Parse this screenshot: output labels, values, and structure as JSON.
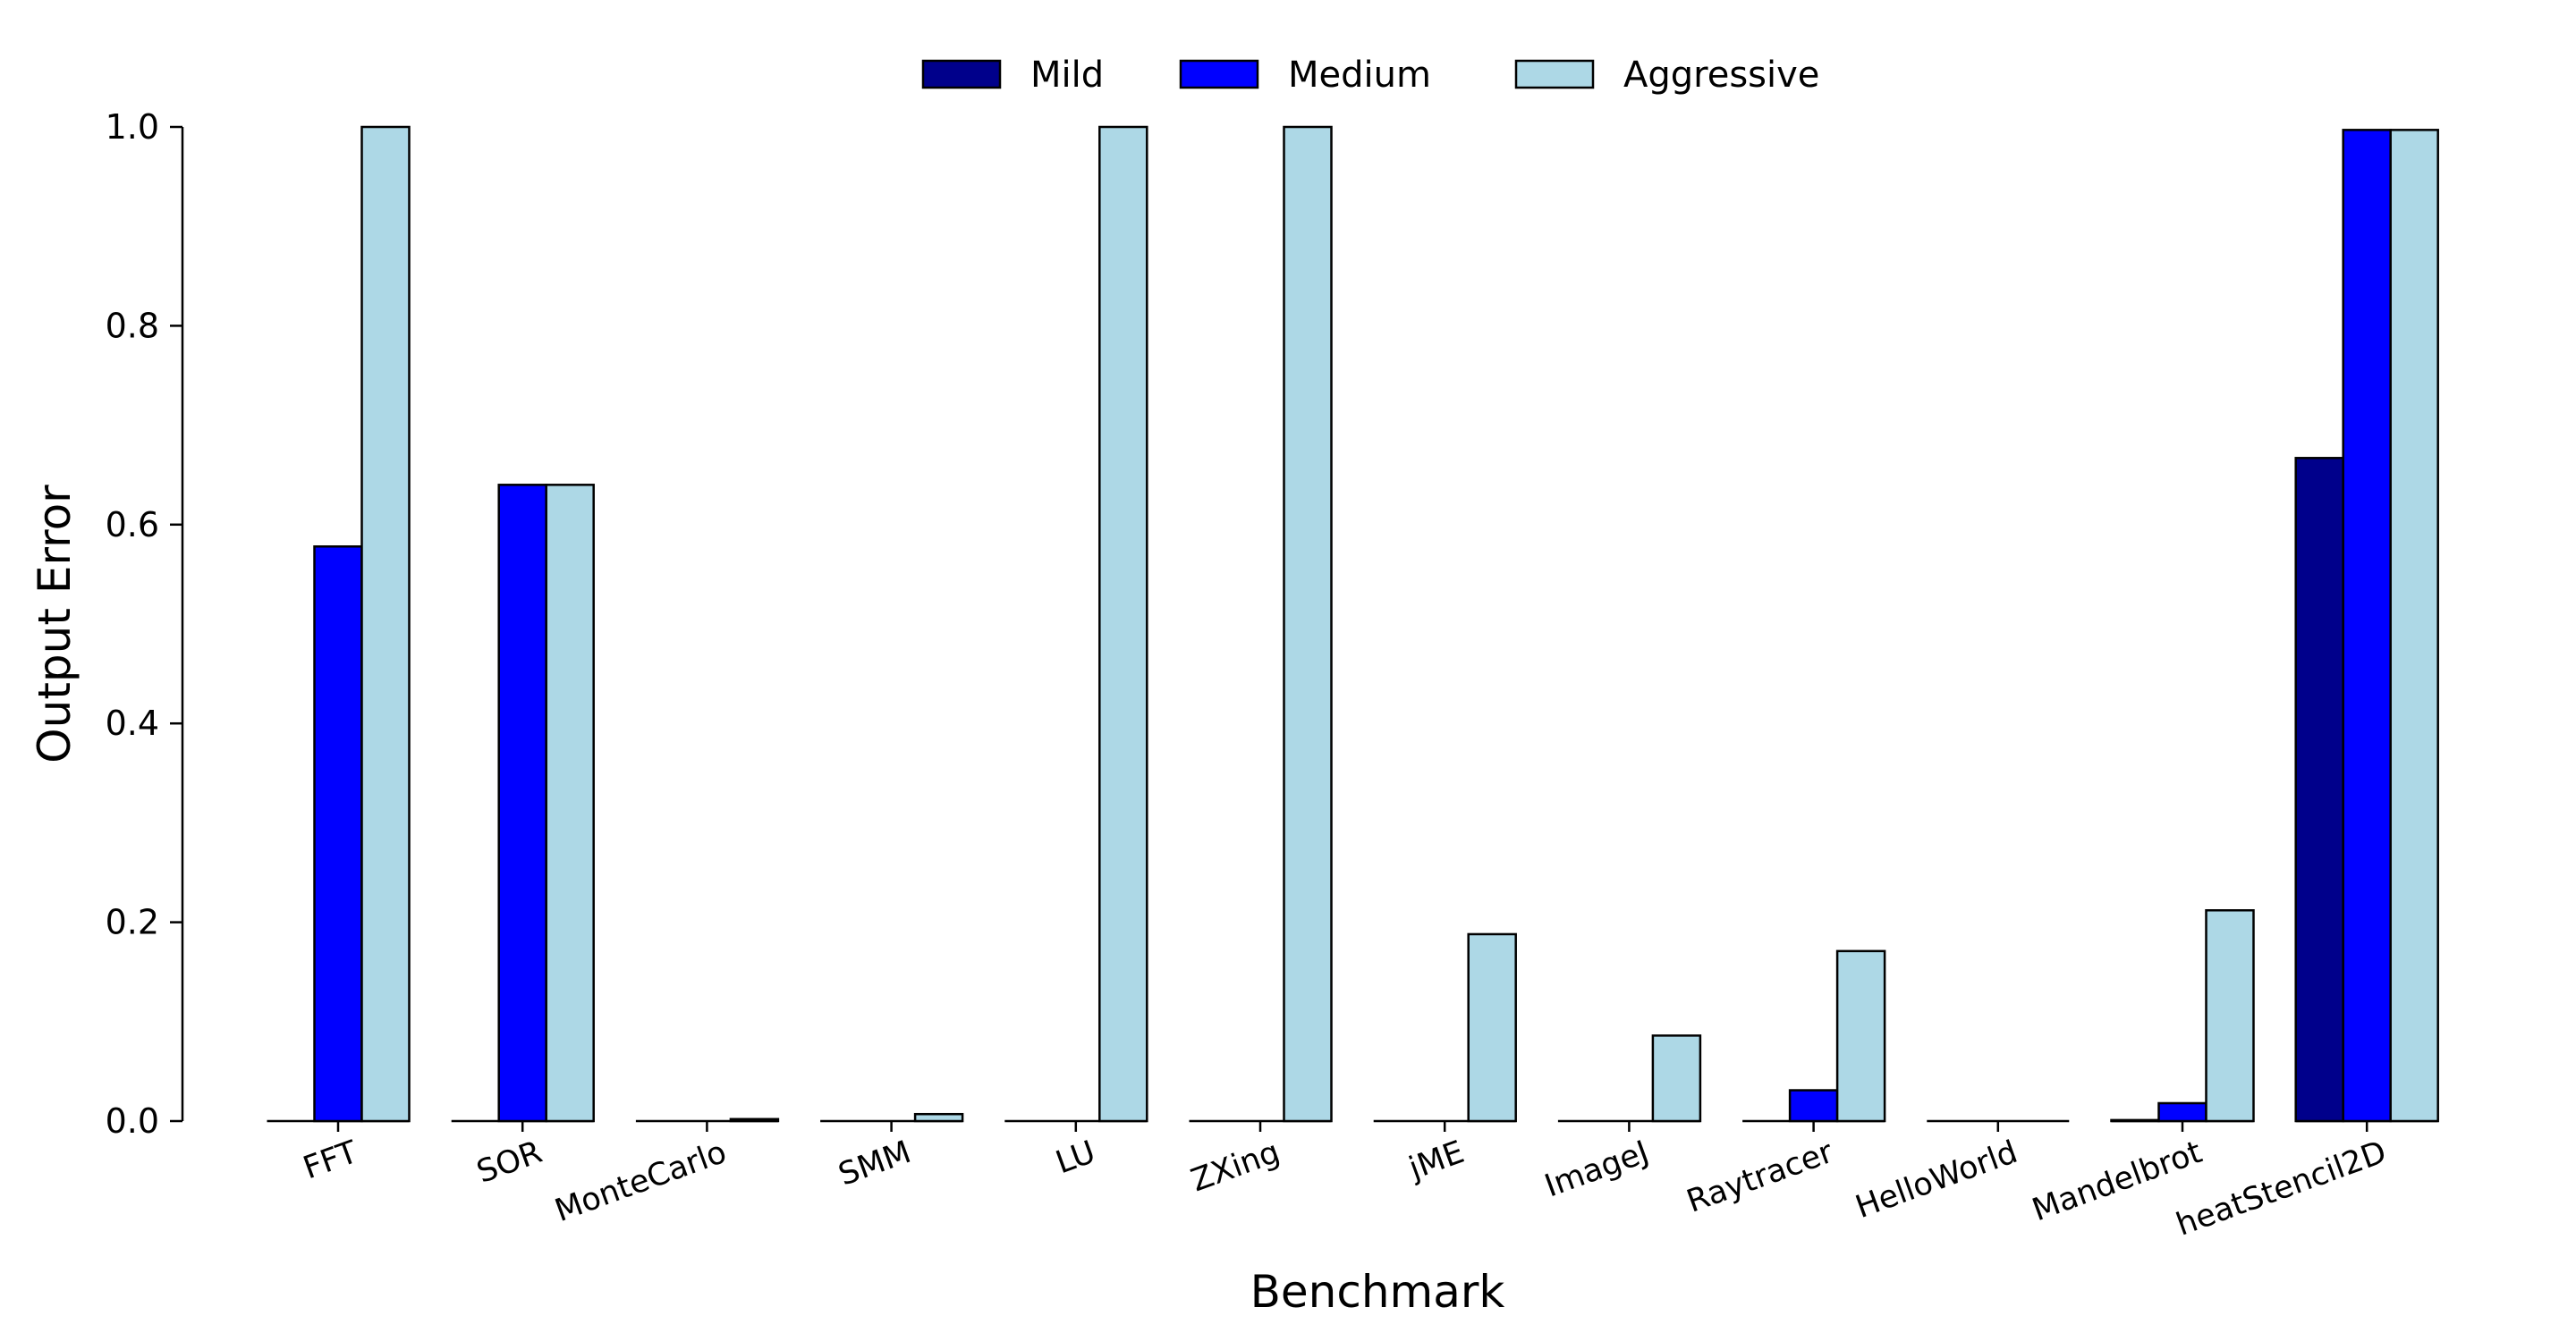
{
  "chart_data": {
    "type": "bar",
    "title": "",
    "xlabel": "Benchmark",
    "ylabel": "Output Error",
    "ylim": [
      0,
      1.0
    ],
    "yticks": [
      "0.0",
      "0.2",
      "0.4",
      "0.6",
      "0.8",
      "1.0"
    ],
    "grid": false,
    "legend_position": "top-center",
    "categories": [
      "FFT",
      "SOR",
      "MonteCarlo",
      "SMM",
      "LU",
      "ZXing",
      "jME",
      "ImageJ",
      "Raytracer",
      "HelloWorld",
      "Mandelbrot",
      "heatStencil2D"
    ],
    "series": [
      {
        "name": "Mild",
        "color": "#00008b",
        "values": [
          0,
          0,
          0,
          0,
          0,
          0,
          0,
          0,
          0,
          0,
          0.001,
          0.667
        ]
      },
      {
        "name": "Medium",
        "color": "#0000ff",
        "values": [
          0.578,
          0.64,
          0,
          0,
          0,
          0,
          0,
          0,
          0.031,
          0,
          0.018,
          0.997
        ]
      },
      {
        "name": "Aggressive",
        "color": "#add8e6",
        "values": [
          1.0,
          0.64,
          0.002,
          0.007,
          1.0,
          1.0,
          0.188,
          0.086,
          0.171,
          0,
          0.212,
          0.997
        ]
      }
    ]
  }
}
